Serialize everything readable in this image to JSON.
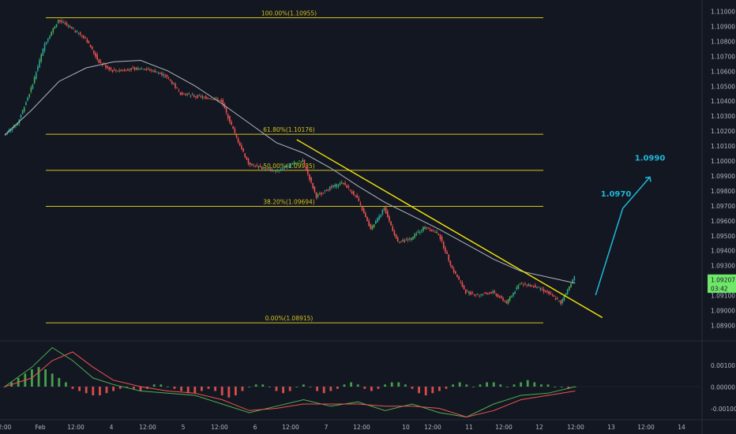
{
  "chart_data": [
    {
      "type": "candlestick",
      "x_tick_labels": [
        "2:00",
        "Feb",
        "12:00",
        "4",
        "12:00",
        "5",
        "12:00",
        "6",
        "12:00",
        "7",
        "12:00",
        "10",
        "12:00",
        "11",
        "12:00",
        "12",
        "12:00",
        "13",
        "12:00",
        "14"
      ],
      "y_tick_labels": [
        "1.11000",
        "1.10900",
        "1.10800",
        "1.10700",
        "1.10600",
        "1.10500",
        "1.10400",
        "1.10300",
        "1.10200",
        "1.10100",
        "1.10000",
        "1.09900",
        "1.09800",
        "1.09700",
        "1.09600",
        "1.09500",
        "1.09400",
        "1.09300",
        "1.09200",
        "1.09100",
        "1.09000",
        "1.08900"
      ],
      "ylim": [
        1.0885,
        1.1105
      ],
      "fibonacci_levels": [
        {
          "label": "100.00%(1.10955)",
          "price": 1.10955
        },
        {
          "label": "61.80%(1.10176)",
          "price": 1.10176
        },
        {
          "label": "50.00%(1.09935)",
          "price": 1.09935
        },
        {
          "label": "38.20%(1.09694)",
          "price": 1.09694
        },
        {
          "label": "0.00%(1.08915)",
          "price": 1.08915
        }
      ],
      "price_path": [
        {
          "x": 0,
          "price": 1.1017
        },
        {
          "x": 2,
          "price": 1.1025
        },
        {
          "x": 4,
          "price": 1.1048
        },
        {
          "x": 6,
          "price": 1.1078
        },
        {
          "x": 8,
          "price": 1.1094
        },
        {
          "x": 10,
          "price": 1.1088
        },
        {
          "x": 12,
          "price": 1.1082
        },
        {
          "x": 14,
          "price": 1.1066
        },
        {
          "x": 16,
          "price": 1.106
        },
        {
          "x": 18,
          "price": 1.1061
        },
        {
          "x": 20,
          "price": 1.1062
        },
        {
          "x": 22,
          "price": 1.106
        },
        {
          "x": 24,
          "price": 1.1056
        },
        {
          "x": 26,
          "price": 1.1045
        },
        {
          "x": 28,
          "price": 1.1043
        },
        {
          "x": 30,
          "price": 1.1042
        },
        {
          "x": 32,
          "price": 1.104
        },
        {
          "x": 34,
          "price": 1.1018
        },
        {
          "x": 36,
          "price": 1.0998
        },
        {
          "x": 38,
          "price": 1.0995
        },
        {
          "x": 40,
          "price": 1.0993
        },
        {
          "x": 42,
          "price": 1.0997
        },
        {
          "x": 44,
          "price": 1.1
        },
        {
          "x": 46,
          "price": 1.0976
        },
        {
          "x": 48,
          "price": 1.0982
        },
        {
          "x": 50,
          "price": 1.0985
        },
        {
          "x": 52,
          "price": 1.0975
        },
        {
          "x": 54,
          "price": 1.0954
        },
        {
          "x": 56,
          "price": 1.0968
        },
        {
          "x": 58,
          "price": 1.0945
        },
        {
          "x": 60,
          "price": 1.0948
        },
        {
          "x": 62,
          "price": 1.0956
        },
        {
          "x": 64,
          "price": 1.0951
        },
        {
          "x": 66,
          "price": 1.0928
        },
        {
          "x": 68,
          "price": 1.0912
        },
        {
          "x": 70,
          "price": 1.091
        },
        {
          "x": 72,
          "price": 1.0912
        },
        {
          "x": 74,
          "price": 1.0905
        },
        {
          "x": 76,
          "price": 1.0918
        },
        {
          "x": 78,
          "price": 1.0916
        },
        {
          "x": 80,
          "price": 1.0912
        },
        {
          "x": 82,
          "price": 1.0905
        },
        {
          "x": 84,
          "price": 1.0922
        }
      ],
      "moving_average": [
        {
          "x": 0,
          "price": 1.1017
        },
        {
          "x": 4,
          "price": 1.1034
        },
        {
          "x": 8,
          "price": 1.1053
        },
        {
          "x": 12,
          "price": 1.1062
        },
        {
          "x": 16,
          "price": 1.1066
        },
        {
          "x": 20,
          "price": 1.1067
        },
        {
          "x": 24,
          "price": 1.106
        },
        {
          "x": 28,
          "price": 1.105
        },
        {
          "x": 32,
          "price": 1.1038
        },
        {
          "x": 36,
          "price": 1.1025
        },
        {
          "x": 40,
          "price": 1.1012
        },
        {
          "x": 44,
          "price": 1.1005
        },
        {
          "x": 48,
          "price": 1.0995
        },
        {
          "x": 52,
          "price": 1.0983
        },
        {
          "x": 56,
          "price": 1.0972
        },
        {
          "x": 60,
          "price": 1.0963
        },
        {
          "x": 64,
          "price": 1.0954
        },
        {
          "x": 68,
          "price": 1.0944
        },
        {
          "x": 72,
          "price": 1.0934
        },
        {
          "x": 76,
          "price": 1.0926
        },
        {
          "x": 80,
          "price": 1.0922
        },
        {
          "x": 84,
          "price": 1.0918
        }
      ],
      "trendline": {
        "from": {
          "x": 43,
          "price": 1.1014
        },
        "to": {
          "x": 88,
          "price": 1.0895
        }
      },
      "projection": {
        "path": [
          {
            "x": 87,
            "price": 1.091
          },
          {
            "x": 91,
            "price": 1.0968
          },
          {
            "x": 95,
            "price": 1.0989
          }
        ],
        "labels": [
          {
            "text": "1.0970",
            "x": 90,
            "price": 1.0976
          },
          {
            "text": "1.0990",
            "x": 95,
            "price": 1.1
          },
          {
            "text": "1.09207",
            "price": 1.09207
          },
          {
            "text": "03:42",
            "price": 1.09147
          }
        ]
      }
    },
    {
      "type": "macd",
      "y_tick_labels": [
        "0.00100",
        "0.00000",
        "-0.00100"
      ],
      "ylim": [
        -0.00195,
        0.00195
      ],
      "histogram": [
        0.0,
        0.0002,
        0.0004,
        0.0006,
        0.0008,
        0.0009,
        0.0008,
        0.0006,
        0.0004,
        0.0002,
        -0.0001,
        -0.0002,
        -0.0003,
        -0.0004,
        -0.0004,
        -0.0003,
        -0.0002,
        -0.0001,
        0.0,
        -0.0001,
        -0.0002,
        -0.0001,
        0.0001,
        0.0001,
        0.0,
        -0.0001,
        -0.0002,
        -0.0003,
        -0.0003,
        -0.0002,
        -0.0001,
        -0.0002,
        -0.0004,
        -0.0005,
        -0.0004,
        -0.0002,
        0.0,
        0.0001,
        0.0001,
        0.0,
        -0.0002,
        -0.0003,
        -0.0002,
        0.0,
        0.0001,
        0.0,
        -0.0002,
        -0.0003,
        -0.0002,
        -0.0001,
        0.0001,
        0.0002,
        0.0001,
        -0.0001,
        -0.0002,
        -0.0001,
        0.0001,
        0.0002,
        0.0002,
        0.0001,
        -0.0001,
        -0.0003,
        -0.0004,
        -0.0003,
        -0.0002,
        -0.0001,
        0.0001,
        0.0002,
        0.0001,
        0.0,
        0.0001,
        0.0002,
        0.0002,
        0.0001,
        0.0,
        0.0001,
        0.0002,
        0.0003,
        0.0002,
        0.0001,
        0.0001,
        0.0,
        0.0,
        -0.0001,
        0.0
      ],
      "macd_line": [
        {
          "x": 0,
          "v": 0.0
        },
        {
          "x": 4,
          "v": 0.0009
        },
        {
          "x": 7,
          "v": 0.0018
        },
        {
          "x": 10,
          "v": 0.0012
        },
        {
          "x": 13,
          "v": 0.0004
        },
        {
          "x": 16,
          "v": 0.0001
        },
        {
          "x": 20,
          "v": -0.0002
        },
        {
          "x": 24,
          "v": -0.0003
        },
        {
          "x": 28,
          "v": -0.0004
        },
        {
          "x": 32,
          "v": -0.0008
        },
        {
          "x": 36,
          "v": -0.0012
        },
        {
          "x": 40,
          "v": -0.0009
        },
        {
          "x": 44,
          "v": -0.0006
        },
        {
          "x": 48,
          "v": -0.0009
        },
        {
          "x": 52,
          "v": -0.0007
        },
        {
          "x": 56,
          "v": -0.0011
        },
        {
          "x": 60,
          "v": -0.0008
        },
        {
          "x": 64,
          "v": -0.0012
        },
        {
          "x": 68,
          "v": -0.0014
        },
        {
          "x": 72,
          "v": -0.0008
        },
        {
          "x": 76,
          "v": -0.0004
        },
        {
          "x": 80,
          "v": -0.0003
        },
        {
          "x": 84,
          "v": 0.0
        }
      ],
      "signal_line": [
        {
          "x": 0,
          "v": 0.0
        },
        {
          "x": 4,
          "v": 0.0004
        },
        {
          "x": 7,
          "v": 0.0012
        },
        {
          "x": 10,
          "v": 0.0016
        },
        {
          "x": 13,
          "v": 0.0009
        },
        {
          "x": 16,
          "v": 0.0003
        },
        {
          "x": 20,
          "v": 0.0
        },
        {
          "x": 24,
          "v": -0.0002
        },
        {
          "x": 28,
          "v": -0.0003
        },
        {
          "x": 32,
          "v": -0.0006
        },
        {
          "x": 36,
          "v": -0.0011
        },
        {
          "x": 40,
          "v": -0.001
        },
        {
          "x": 44,
          "v": -0.0008
        },
        {
          "x": 48,
          "v": -0.0008
        },
        {
          "x": 52,
          "v": -0.0008
        },
        {
          "x": 56,
          "v": -0.0009
        },
        {
          "x": 60,
          "v": -0.0009
        },
        {
          "x": 64,
          "v": -0.001
        },
        {
          "x": 68,
          "v": -0.0014
        },
        {
          "x": 72,
          "v": -0.0011
        },
        {
          "x": 76,
          "v": -0.0006
        },
        {
          "x": 80,
          "v": -0.0004
        },
        {
          "x": 84,
          "v": -0.0002
        }
      ]
    }
  ],
  "colors": {
    "background": "#131722",
    "up_candle": "#26a69a",
    "up_bright": "#4caf50",
    "down_candle": "#ef5350",
    "fib_line": "#d4c21c",
    "trendline": "#f5e50a",
    "moving_average": "#b2b5be",
    "projection": "#1fb8d9",
    "axis_text": "#b2b5be",
    "price_tag_bg": "#6fe86a"
  }
}
